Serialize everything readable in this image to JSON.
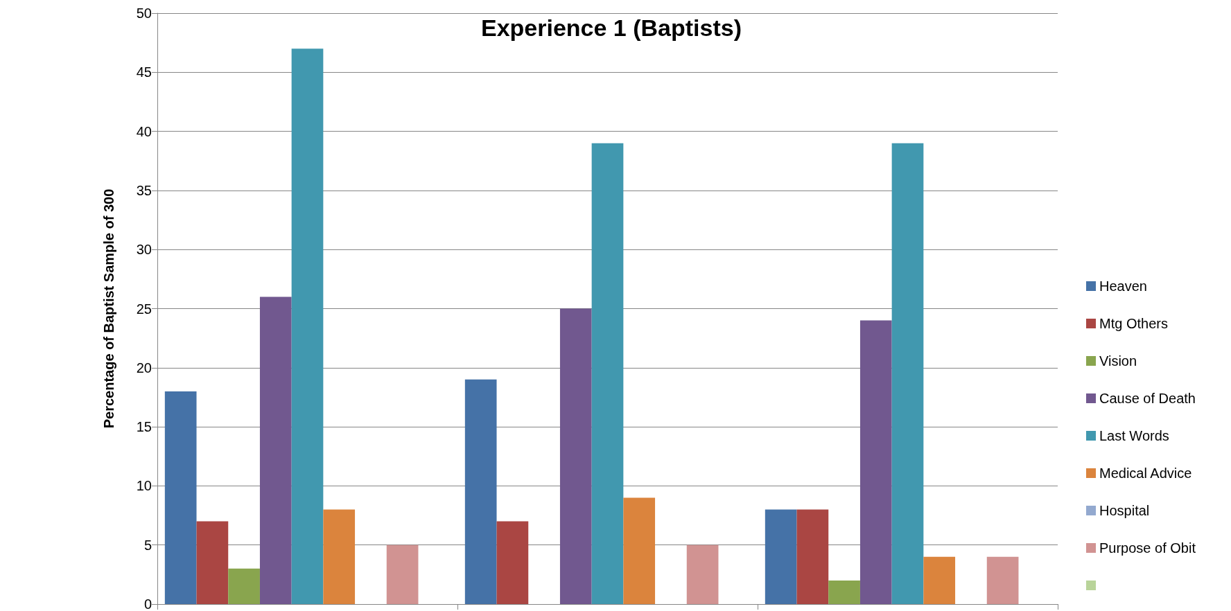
{
  "chart_data": {
    "type": "bar",
    "title": "Experience 1 (Baptists)",
    "ylabel": "Percentage of Baptist Sample of 300",
    "categories": [
      null,
      null,
      null
    ],
    "series": [
      {
        "name": "Heaven",
        "color": "#4572a7",
        "values": [
          18,
          19,
          8
        ]
      },
      {
        "name": "Mtg Others",
        "color": "#aa4643",
        "values": [
          7,
          7,
          8
        ]
      },
      {
        "name": "Vision",
        "color": "#89a54e",
        "values": [
          3,
          0,
          2
        ]
      },
      {
        "name": "Cause of Death",
        "color": "#71588f",
        "values": [
          26,
          25,
          24
        ]
      },
      {
        "name": "Last Words",
        "color": "#4198af",
        "values": [
          47,
          39,
          39
        ]
      },
      {
        "name": "Medical Advice",
        "color": "#db843d",
        "values": [
          8,
          9,
          4
        ]
      },
      {
        "name": "Hospital",
        "color": "#93a9cf",
        "values": [
          0,
          0,
          0
        ]
      },
      {
        "name": "Purpose of Obit",
        "color": "#d19392",
        "values": [
          5,
          5,
          4
        ]
      },
      {
        "color": "#b9d49a",
        "values": [
          0,
          0,
          0
        ]
      }
    ],
    "ylim": [
      0,
      50
    ],
    "yticks": [
      0,
      5,
      10,
      15,
      20,
      25,
      30,
      35,
      40,
      45,
      50
    ],
    "grid": "y",
    "legend": "right",
    "tick_labels": "y"
  }
}
